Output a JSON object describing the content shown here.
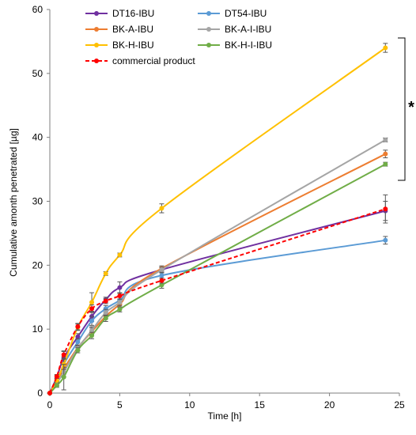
{
  "chart_data": {
    "type": "line",
    "title": "",
    "xlabel": "Time [h]",
    "ylabel": "Cumulative amonth penetrated [µg]",
    "xlim": [
      0,
      25
    ],
    "ylim": [
      0,
      60
    ],
    "xticks": [
      0,
      5,
      10,
      15,
      20,
      25
    ],
    "yticks": [
      0,
      10,
      20,
      30,
      40,
      50,
      60
    ],
    "grid": false,
    "legend_position": "top-left",
    "annotation": "*",
    "series": [
      {
        "name": "DT16-IBU",
        "color": "#7030A0",
        "dashed": false,
        "points": [
          [
            0,
            0
          ],
          [
            0.5,
            2.5
          ],
          [
            1,
            5.5
          ],
          [
            2,
            8.8
          ],
          [
            3,
            12.0
          ],
          [
            4,
            14.6
          ],
          [
            5,
            16.5
          ],
          [
            8,
            19.3
          ],
          [
            24,
            28.5
          ]
        ],
        "errors": [
          0,
          0.3,
          1.0,
          0.5,
          0.8,
          0.4,
          0.9,
          0.4,
          1.5
        ]
      },
      {
        "name": "DT54-IBU",
        "color": "#5B9BD5",
        "dashed": false,
        "points": [
          [
            0,
            0
          ],
          [
            0.5,
            1.5
          ],
          [
            1,
            4.5
          ],
          [
            2,
            8.0
          ],
          [
            3,
            11.3
          ],
          [
            4,
            13.2
          ],
          [
            5,
            14.5
          ],
          [
            8,
            18.4
          ],
          [
            24,
            23.9
          ]
        ],
        "errors": [
          0,
          0.4,
          1.2,
          0.5,
          0.7,
          0.5,
          0.6,
          0.4,
          0.6
        ]
      },
      {
        "name": "BK-A-IBU",
        "color": "#ED7D31",
        "dashed": false,
        "points": [
          [
            0,
            0
          ],
          [
            0.5,
            1.8
          ],
          [
            1,
            3.8
          ],
          [
            2,
            7.1
          ],
          [
            3,
            9.6
          ],
          [
            4,
            12.0
          ],
          [
            5,
            13.9
          ],
          [
            8,
            19.5
          ],
          [
            24,
            37.4
          ]
        ],
        "errors": [
          0,
          0.3,
          0.8,
          0.4,
          0.6,
          0.4,
          0.5,
          0.4,
          0.6
        ]
      },
      {
        "name": "BK-A-I-IBU",
        "color": "#A5A5A5",
        "dashed": false,
        "points": [
          [
            0,
            0
          ],
          [
            0.5,
            1.5
          ],
          [
            1,
            3.3
          ],
          [
            2,
            7.0
          ],
          [
            3,
            9.8
          ],
          [
            4,
            12.6
          ],
          [
            5,
            14.2
          ],
          [
            8,
            19.3
          ],
          [
            24,
            39.6
          ]
        ],
        "errors": [
          0,
          0.3,
          0.7,
          0.4,
          0.6,
          0.5,
          0.5,
          0.4,
          0.3
        ]
      },
      {
        "name": "BK-H-IBU",
        "color": "#FFC000",
        "dashed": false,
        "points": [
          [
            0,
            0
          ],
          [
            0.5,
            2.0
          ],
          [
            1,
            4.5
          ],
          [
            2,
            10.3
          ],
          [
            3,
            14.2
          ],
          [
            4,
            18.7
          ],
          [
            5,
            21.6
          ],
          [
            8,
            28.9
          ],
          [
            24,
            54.0
          ]
        ],
        "errors": [
          0,
          0.3,
          0.8,
          0.5,
          1.5,
          0.3,
          0.3,
          0.7,
          0.7
        ]
      },
      {
        "name": "BK-H-I-IBU",
        "color": "#70AD47",
        "dashed": false,
        "points": [
          [
            0,
            0
          ],
          [
            0.5,
            1.2
          ],
          [
            1,
            2.5
          ],
          [
            2,
            6.7
          ],
          [
            3,
            9.0
          ],
          [
            4,
            11.7
          ],
          [
            5,
            13.1
          ],
          [
            8,
            16.9
          ],
          [
            24,
            35.8
          ]
        ],
        "errors": [
          0,
          0.3,
          2.0,
          0.4,
          0.5,
          0.5,
          0.4,
          0.5,
          0.3
        ]
      },
      {
        "name": "commercial product",
        "color": "#FF0000",
        "dashed": true,
        "points": [
          [
            0,
            0
          ],
          [
            0.5,
            2.6
          ],
          [
            1,
            6.0
          ],
          [
            2,
            10.4
          ],
          [
            3,
            13.2
          ],
          [
            4,
            14.4
          ],
          [
            5,
            15.2
          ],
          [
            8,
            17.6
          ],
          [
            24,
            28.8
          ]
        ],
        "errors": [
          0,
          0.3,
          0.6,
          0.5,
          0.6,
          0.4,
          0.5,
          0.4,
          2.2
        ]
      }
    ]
  }
}
